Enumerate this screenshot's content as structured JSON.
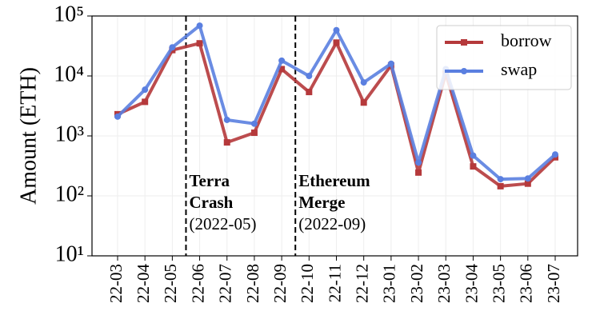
{
  "chart_data": {
    "type": "line",
    "y_label": "Amount (ETH)",
    "categories": [
      "22-03",
      "22-04",
      "22-05",
      "22-06",
      "22-07",
      "22-08",
      "22-09",
      "22-10",
      "22-11",
      "22-12",
      "23-01",
      "23-02",
      "23-03",
      "23-04",
      "23-05",
      "23-06",
      "23-07"
    ],
    "series": [
      {
        "name": "borrow",
        "color": "#b5393b",
        "marker": "square",
        "values": [
          2300,
          3700,
          27000,
          35000,
          780,
          1130,
          13000,
          5400,
          36000,
          3600,
          15000,
          245,
          11000,
          310,
          145,
          160,
          440
        ]
      },
      {
        "name": "swap",
        "color": "#5a7fe0",
        "marker": "circle",
        "values": [
          2100,
          5900,
          30000,
          69000,
          1850,
          1600,
          18000,
          10000,
          58000,
          7800,
          16000,
          360,
          13000,
          470,
          190,
          195,
          490
        ]
      }
    ],
    "log_scale": true,
    "ylim": [
      10,
      100000
    ],
    "yticks": [
      {
        "value": 10,
        "label": "10¹"
      },
      {
        "value": 100,
        "label": "10²"
      },
      {
        "value": 1000,
        "label": "10³"
      },
      {
        "value": 10000,
        "label": "10⁴"
      },
      {
        "value": 100000,
        "label": "10⁵"
      }
    ],
    "grid": true,
    "legend_position": "upper right",
    "annotations": [
      {
        "title": [
          "Terra",
          "Crash"
        ],
        "date": "(2022-05)"
      },
      {
        "title": [
          "Ethereum",
          "Merge"
        ],
        "date": "(2022-09)"
      }
    ]
  }
}
